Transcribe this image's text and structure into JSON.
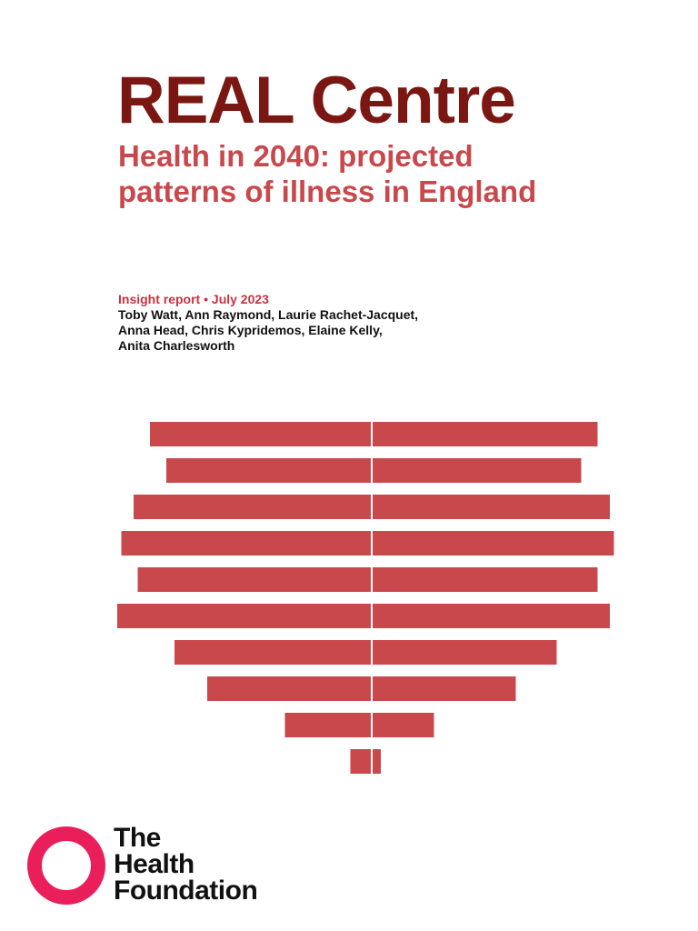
{
  "cover": {
    "title": "REAL Centre",
    "subtitle_lines": [
      "Health in 2040: projected",
      "patterns of illness in England"
    ],
    "report_line": "Insight report • July 2023",
    "authors_lines": [
      "Toby Watt, Ann Raymond, Laurie Rachet-Jacquet,",
      "Anna Head, Chris Kypridemos, Elaine Kelly,",
      "Anita Charlesworth"
    ]
  },
  "graphic": {
    "color": "#c8484c",
    "bars": [
      {
        "left": 0.54,
        "right": 0.55
      },
      {
        "left": 0.5,
        "right": 0.51
      },
      {
        "left": 0.58,
        "right": 0.58
      },
      {
        "left": 0.61,
        "right": 0.59
      },
      {
        "left": 0.57,
        "right": 0.55
      },
      {
        "left": 0.62,
        "right": 0.58
      },
      {
        "left": 0.48,
        "right": 0.45
      },
      {
        "left": 0.4,
        "right": 0.35
      },
      {
        "left": 0.21,
        "right": 0.15
      },
      {
        "left": 0.05,
        "right": 0.02
      }
    ]
  },
  "logo": {
    "icon": "circle-ring-icon",
    "color": "#ea1e5b",
    "lines": [
      "The",
      "Health",
      "Foundation"
    ]
  }
}
